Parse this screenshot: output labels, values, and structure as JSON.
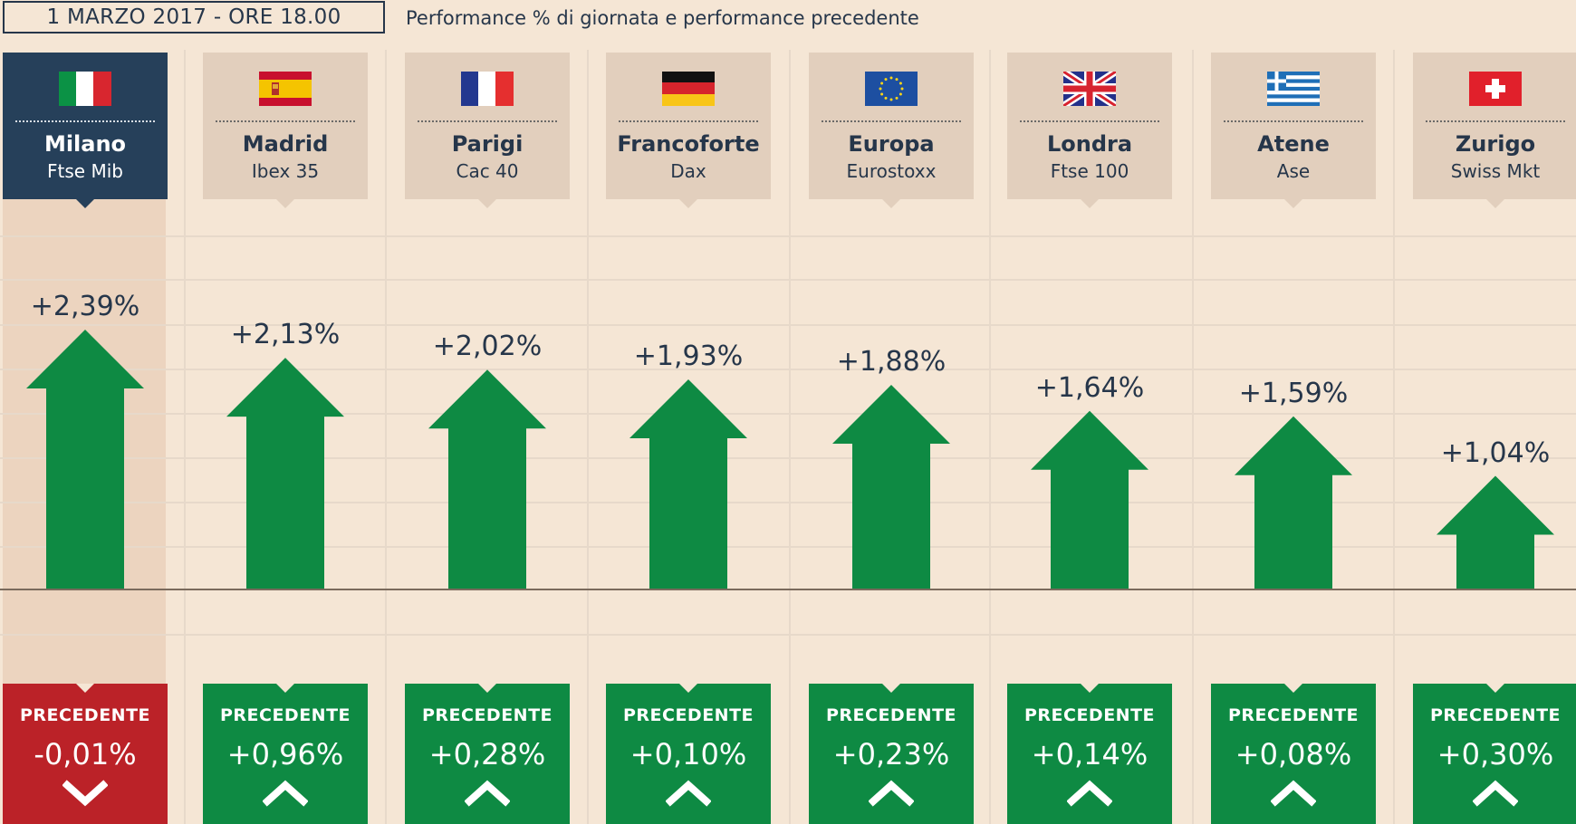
{
  "header": {
    "date": "1 MARZO 2017 - ORE 18.00",
    "subtitle": "Performance % di giornata e performance precedente"
  },
  "colors": {
    "background": "#f5e6d5",
    "navy": "#26405a",
    "card": "#e2cfbd",
    "up_green": "#0e8a43",
    "down_red": "#bb2228",
    "text": "#26364a"
  },
  "chart_data": {
    "type": "bar",
    "title": "Performance % di giornata e performance precedente",
    "categories": [
      "Milano",
      "Madrid",
      "Parigi",
      "Francoforte",
      "Europa",
      "Londra",
      "Atene",
      "Zurigo"
    ],
    "indices": [
      "Ftse Mib",
      "Ibex 35",
      "Cac 40",
      "Dax",
      "Eurostoxx",
      "Ftse 100",
      "Ase",
      "Swiss Mkt"
    ],
    "series": [
      {
        "name": "Performance % di giornata",
        "values": [
          2.39,
          2.13,
          2.02,
          1.93,
          1.88,
          1.64,
          1.59,
          1.04
        ]
      },
      {
        "name": "Performance precedente",
        "values": [
          -0.01,
          0.96,
          0.28,
          0.1,
          0.23,
          0.14,
          0.08,
          0.3
        ]
      }
    ],
    "highlighted": "Milano"
  },
  "markets": [
    {
      "city": "Milano",
      "index": "Ftse Mib",
      "flag": "italy-flag",
      "today": "+2,39%",
      "prev_label": "PRECEDENTE",
      "prev": "-0,01%"
    },
    {
      "city": "Madrid",
      "index": "Ibex 35",
      "flag": "spain-flag",
      "today": "+2,13%",
      "prev_label": "PRECEDENTE",
      "prev": "+0,96%"
    },
    {
      "city": "Parigi",
      "index": "Cac 40",
      "flag": "france-flag",
      "today": "+2,02%",
      "prev_label": "PRECEDENTE",
      "prev": "+0,28%"
    },
    {
      "city": "Francoforte",
      "index": "Dax",
      "flag": "germany-flag",
      "today": "+1,93%",
      "prev_label": "PRECEDENTE",
      "prev": "+0,10%"
    },
    {
      "city": "Europa",
      "index": "Eurostoxx",
      "flag": "eu-flag",
      "today": "+1,88%",
      "prev_label": "PRECEDENTE",
      "prev": "+0,23%"
    },
    {
      "city": "Londra",
      "index": "Ftse 100",
      "flag": "uk-flag",
      "today": "+1,64%",
      "prev_label": "PRECEDENTE",
      "prev": "+0,14%"
    },
    {
      "city": "Atene",
      "index": "Ase",
      "flag": "greece-flag",
      "today": "+1,59%",
      "prev_label": "PRECEDENTE",
      "prev": "+0,08%"
    },
    {
      "city": "Zurigo",
      "index": "Swiss Mkt",
      "flag": "switzerland-flag",
      "today": "+1,04%",
      "prev_label": "PRECEDENTE",
      "prev": "+0,30%"
    }
  ]
}
